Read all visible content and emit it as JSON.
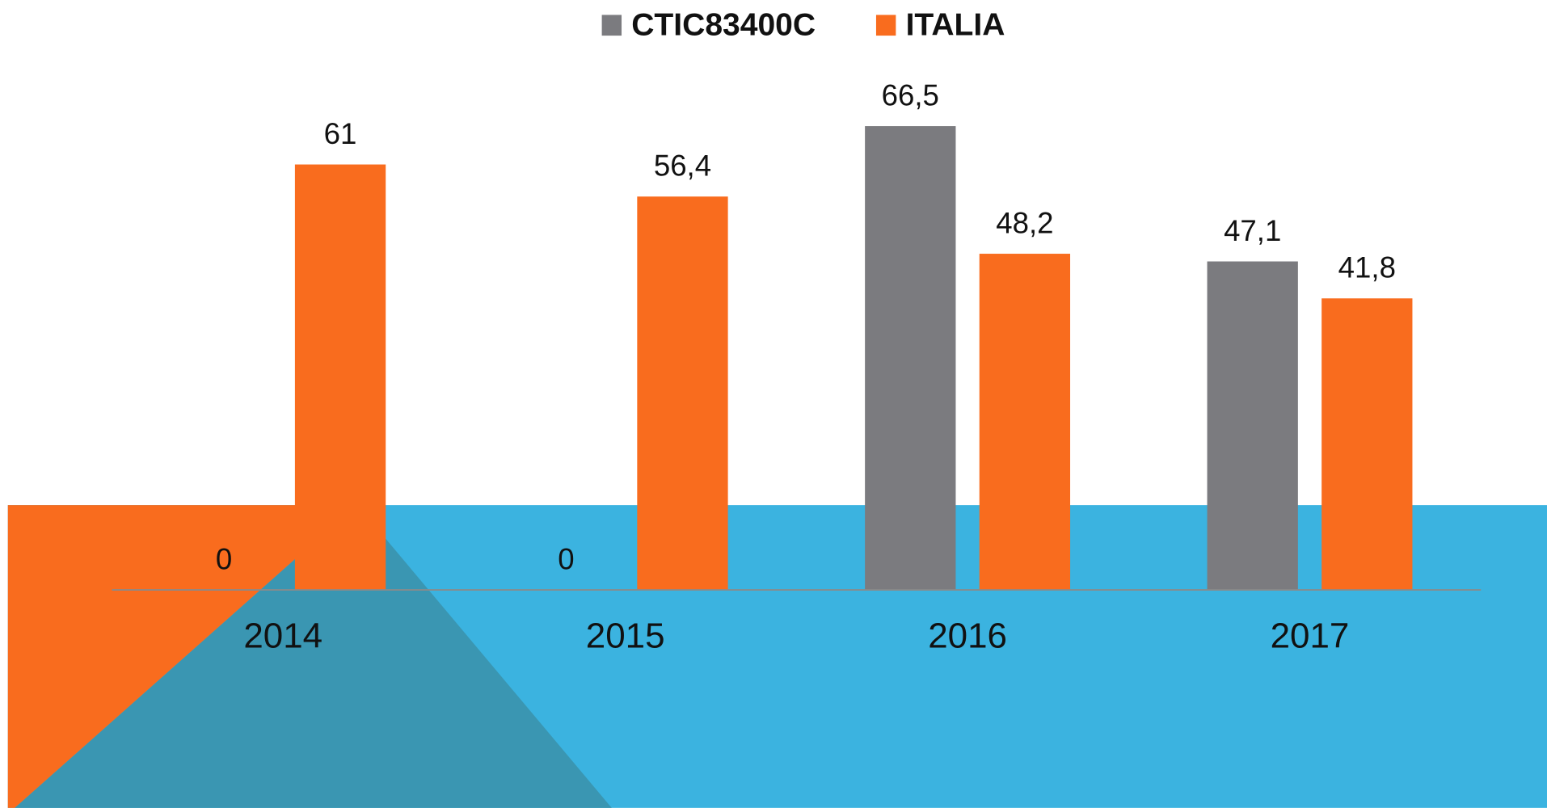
{
  "chart_data": {
    "type": "bar",
    "categories": [
      "2014",
      "2015",
      "2016",
      "2017"
    ],
    "series": [
      {
        "name": "CTIC83400C",
        "color": "#7b7b7f",
        "values": [
          0,
          0,
          66.5,
          47.1
        ],
        "value_labels": [
          "0",
          "0",
          "66,5",
          "47,1"
        ]
      },
      {
        "name": "ITALIA",
        "color": "#f96c1e",
        "values": [
          61,
          56.4,
          48.2,
          41.8
        ],
        "value_labels": [
          "61",
          "56,4",
          "48,2",
          "41,8"
        ]
      }
    ],
    "ylim": [
      0,
      70
    ],
    "legend": "top",
    "grid": false
  }
}
